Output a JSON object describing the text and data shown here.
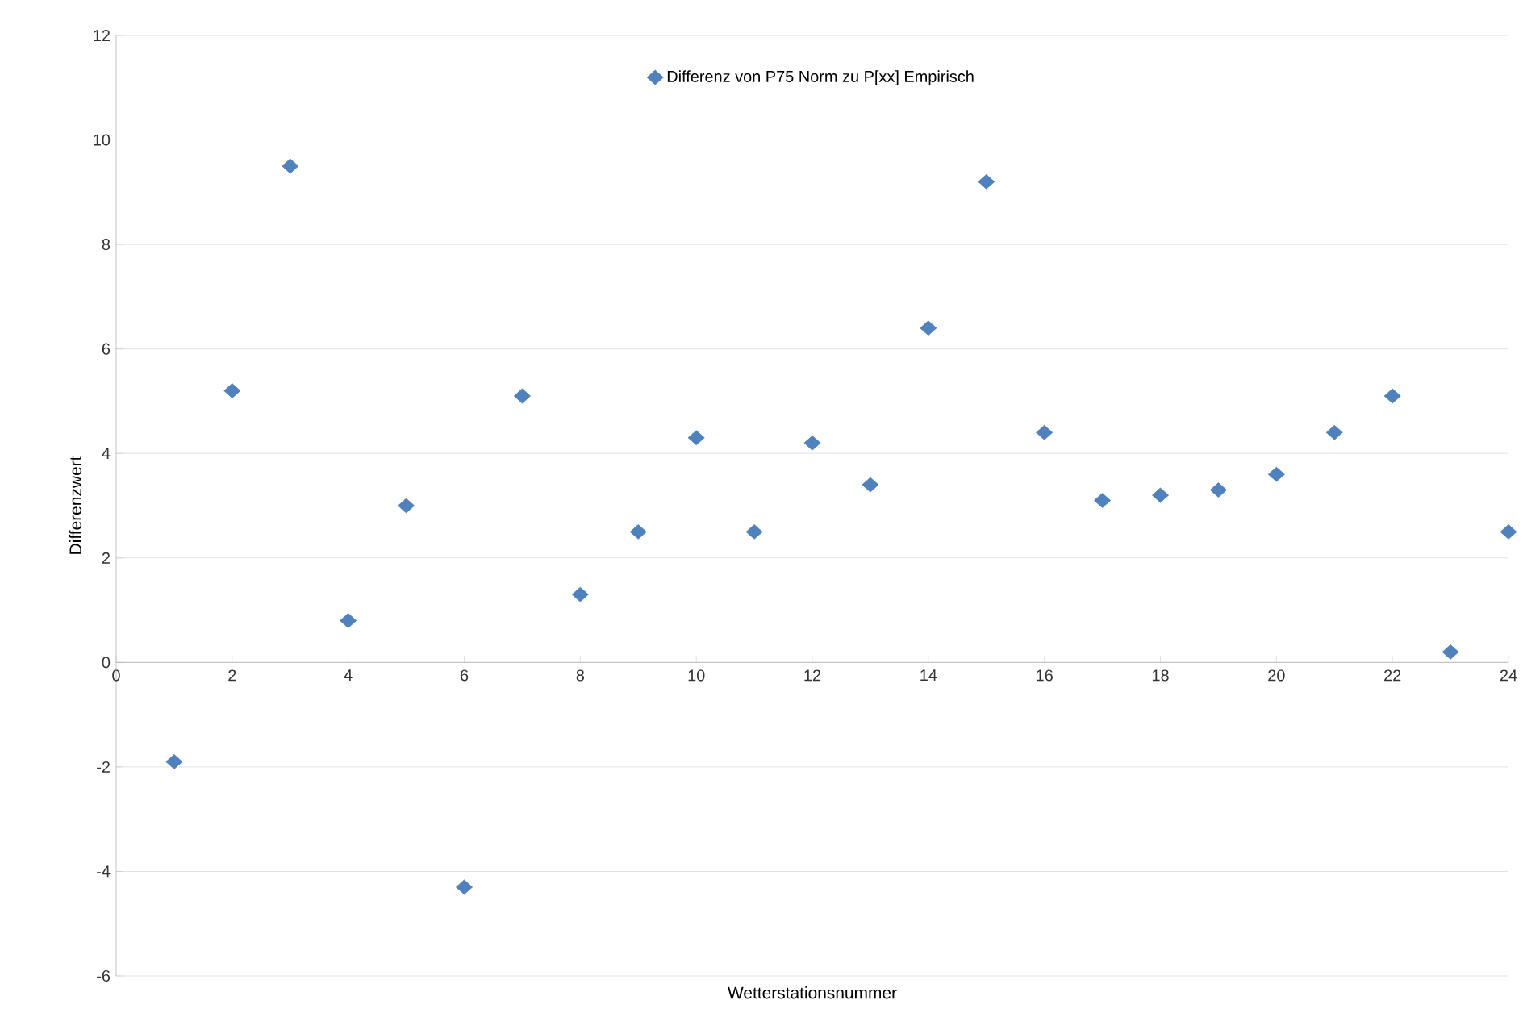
{
  "chart_data": {
    "type": "scatter",
    "xlabel": "Wetterstationsnummer",
    "ylabel": "Differenzwert",
    "x": [
      1,
      2,
      3,
      4,
      5,
      6,
      7,
      8,
      9,
      10,
      11,
      12,
      13,
      14,
      15,
      16,
      17,
      18,
      19,
      20,
      21,
      22,
      23,
      24
    ],
    "series": [
      {
        "name": "Differenz von P75 Norm zu P[xx] Empirisch",
        "color": "#4f81bd",
        "values": [
          -1.9,
          5.2,
          9.5,
          0.8,
          3.0,
          -4.3,
          5.1,
          1.3,
          2.5,
          4.3,
          2.5,
          4.2,
          3.4,
          6.4,
          9.2,
          4.4,
          3.1,
          3.2,
          3.3,
          3.6,
          4.4,
          5.1,
          0.2,
          2.5
        ]
      }
    ],
    "xlim": [
      0,
      24
    ],
    "xticks": [
      0,
      2,
      4,
      6,
      8,
      10,
      12,
      14,
      16,
      18,
      20,
      22,
      24
    ],
    "ylim": [
      -6,
      12
    ],
    "yticks": [
      -6,
      -4,
      -2,
      0,
      2,
      4,
      6,
      8,
      10,
      12
    ],
    "grid": "y",
    "legend": "top",
    "marker": "diamond"
  }
}
